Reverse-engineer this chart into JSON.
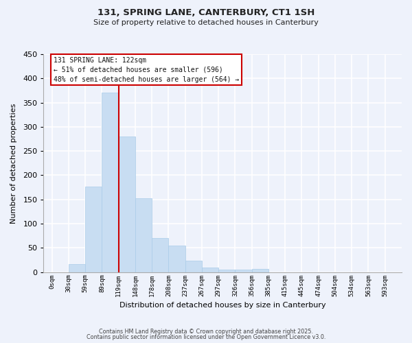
{
  "title": "131, SPRING LANE, CANTERBURY, CT1 1SH",
  "subtitle": "Size of property relative to detached houses in Canterbury",
  "xlabel": "Distribution of detached houses by size in Canterbury",
  "ylabel": "Number of detached properties",
  "bar_color": "#c8ddf2",
  "bar_edge_color": "#aacce8",
  "background_color": "#eef2fb",
  "grid_color": "#ffffff",
  "bin_labels": [
    "0sqm",
    "30sqm",
    "59sqm",
    "89sqm",
    "119sqm",
    "148sqm",
    "178sqm",
    "208sqm",
    "237sqm",
    "267sqm",
    "297sqm",
    "326sqm",
    "356sqm",
    "385sqm",
    "415sqm",
    "445sqm",
    "474sqm",
    "504sqm",
    "534sqm",
    "563sqm",
    "593sqm"
  ],
  "bar_values": [
    0,
    17,
    177,
    370,
    280,
    153,
    70,
    55,
    23,
    9,
    5,
    5,
    6,
    0,
    0,
    0,
    0,
    0,
    0,
    0,
    0
  ],
  "ylim": [
    0,
    450
  ],
  "yticks": [
    0,
    50,
    100,
    150,
    200,
    250,
    300,
    350,
    400,
    450
  ],
  "vline_color": "#cc0000",
  "annotation_title": "131 SPRING LANE: 122sqm",
  "annotation_line1": "← 51% of detached houses are smaller (596)",
  "annotation_line2": "48% of semi-detached houses are larger (564) →",
  "annotation_box_color": "#ffffff",
  "annotation_box_edge": "#cc0000",
  "footer1": "Contains HM Land Registry data © Crown copyright and database right 2025.",
  "footer2": "Contains public sector information licensed under the Open Government Licence v3.0."
}
